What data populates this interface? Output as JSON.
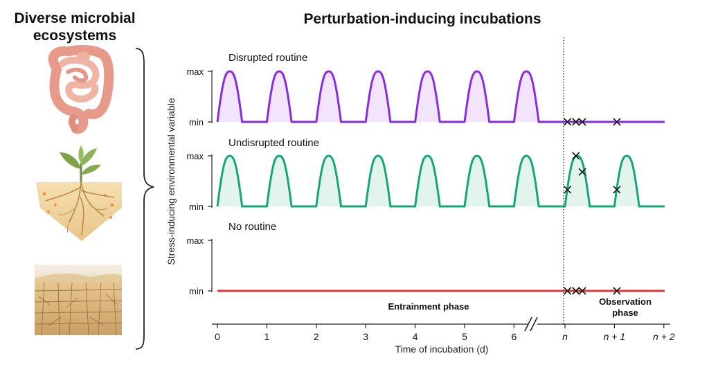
{
  "left_panel": {
    "title_line1": "Diverse microbial",
    "title_line2": "ecosystems",
    "ecosystems": [
      "gut-illustration",
      "plant-soil-illustration",
      "desert-soil-illustration"
    ]
  },
  "main": {
    "title": "Perturbation-inducing incubations",
    "y_axis_label": "Stress-inducing environmental variable",
    "x_axis_label": "Time of incubation (d)",
    "entrainment_label": "Entrainment phase",
    "observation_label_line1": "Observation",
    "observation_label_line2": "phase"
  },
  "chart_data": {
    "type": "line",
    "x_ticks": [
      "0",
      "1",
      "2",
      "3",
      "4",
      "5",
      "6",
      "n",
      "n + 1",
      "n + 2"
    ],
    "x_break_between": [
      "6",
      "n"
    ],
    "xlabel": "Time of incubation (d)",
    "ylabel": "Stress-inducing environmental variable",
    "y_levels": [
      "min",
      "max"
    ],
    "panels": [
      {
        "name": "Disrupted routine",
        "color": "#8a2be2",
        "fill": "#f1e4fb",
        "pulse_starts": [
          0,
          1,
          2,
          3,
          4,
          5,
          6
        ],
        "pulse_duration_d": 0.5,
        "sample_points": [
          {
            "t": "n",
            "offset_d": 0.05,
            "level": 0.0
          },
          {
            "t": "n",
            "offset_d": 0.22,
            "level": 0.0
          },
          {
            "t": "n",
            "offset_d": 0.35,
            "level": 0.0
          },
          {
            "t": "n + 1",
            "offset_d": 0.05,
            "level": 0.0
          }
        ]
      },
      {
        "name": "Undisrupted routine",
        "color": "#12a67a",
        "fill": "#e3f4ed",
        "pulse_starts": [
          0,
          1,
          2,
          3,
          4,
          5,
          6,
          "n",
          "n + 1"
        ],
        "pulse_duration_d": 0.5,
        "sample_points": [
          {
            "t": "n",
            "offset_d": 0.05,
            "level": 0.33
          },
          {
            "t": "n",
            "offset_d": 0.22,
            "level": 1.0
          },
          {
            "t": "n",
            "offset_d": 0.35,
            "level": 0.68
          },
          {
            "t": "n + 1",
            "offset_d": 0.05,
            "level": 0.33
          }
        ]
      },
      {
        "name": "No routine",
        "color": "#e8333a",
        "fill": "none",
        "pulse_starts": [],
        "pulse_duration_d": 0.5,
        "sample_points": [
          {
            "t": "n",
            "offset_d": 0.05,
            "level": 0.0
          },
          {
            "t": "n",
            "offset_d": 0.22,
            "level": 0.0
          },
          {
            "t": "n",
            "offset_d": 0.35,
            "level": 0.0
          },
          {
            "t": "n + 1",
            "offset_d": 0.05,
            "level": 0.0
          }
        ]
      }
    ]
  }
}
